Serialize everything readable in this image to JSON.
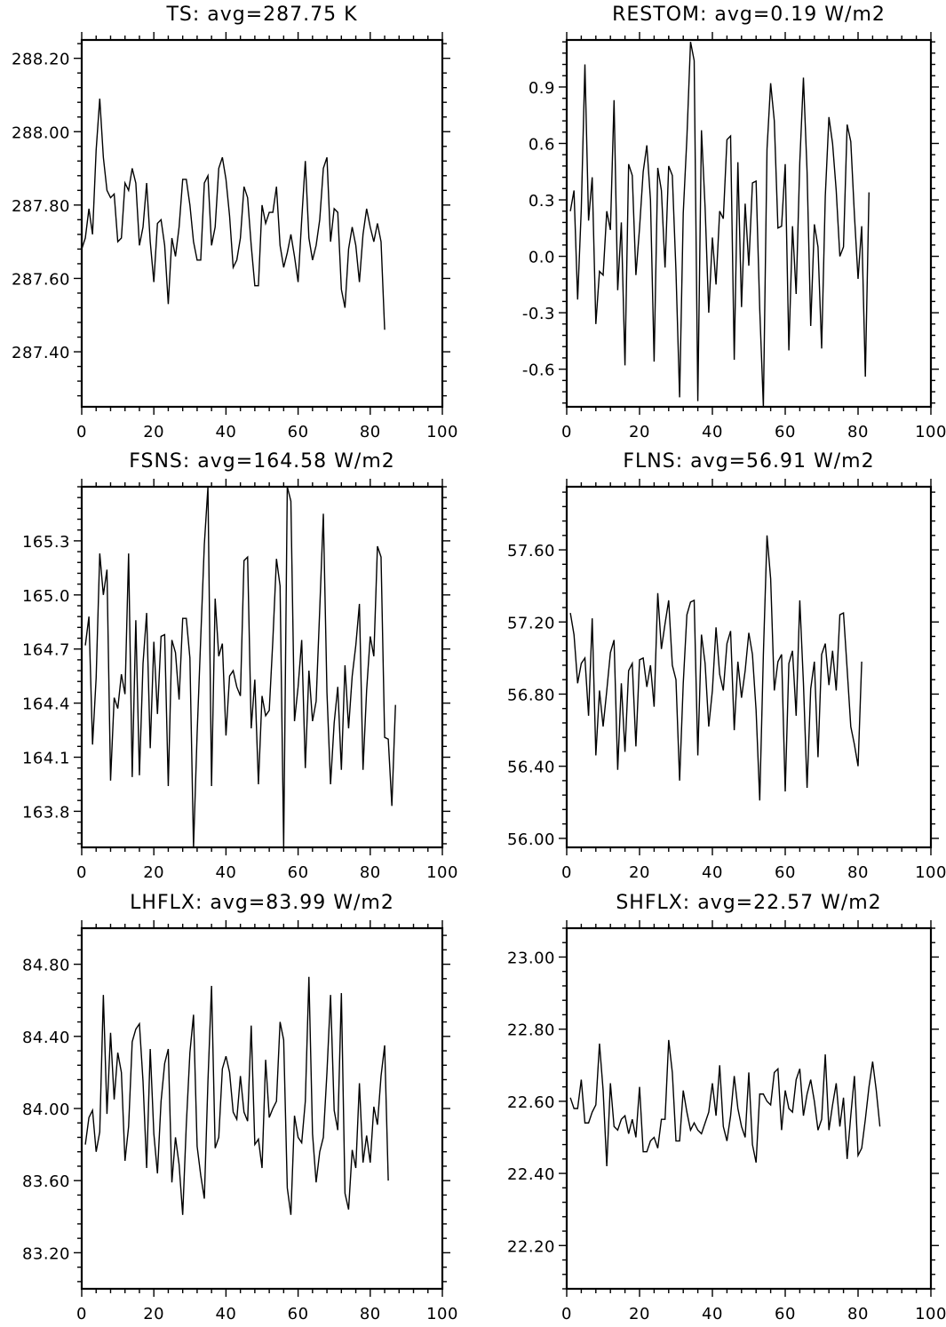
{
  "chart_data": [
    {
      "type": "line",
      "title": "TS: avg=287.75 K",
      "xlim": [
        0,
        100
      ],
      "ylim": [
        287.25,
        288.25
      ],
      "xticks": [
        0,
        20,
        40,
        60,
        80,
        100
      ],
      "xticklabels": [
        "0",
        "20",
        "40",
        "60",
        "80",
        "100"
      ],
      "yticks": [
        287.4,
        287.6,
        287.8,
        288.0,
        288.2
      ],
      "yticklabels": [
        "287.40",
        "287.60",
        "287.80",
        "288.00",
        "288.20"
      ],
      "x_start": 0,
      "values": [
        287.68,
        287.71,
        287.79,
        287.72,
        287.95,
        288.09,
        287.93,
        287.84,
        287.82,
        287.83,
        287.7,
        287.71,
        287.86,
        287.84,
        287.9,
        287.86,
        287.69,
        287.74,
        287.86,
        287.7,
        287.59,
        287.75,
        287.76,
        287.69,
        287.53,
        287.71,
        287.66,
        287.74,
        287.87,
        287.87,
        287.8,
        287.7,
        287.65,
        287.65,
        287.86,
        287.88,
        287.69,
        287.74,
        287.9,
        287.93,
        287.87,
        287.77,
        287.63,
        287.65,
        287.71,
        287.85,
        287.82,
        287.69,
        287.58,
        287.58,
        287.8,
        287.75,
        287.78,
        287.78,
        287.85,
        287.69,
        287.63,
        287.67,
        287.72,
        287.66,
        287.59,
        287.76,
        287.92,
        287.71,
        287.65,
        287.69,
        287.76,
        287.9,
        287.93,
        287.7,
        287.79,
        287.78,
        287.57,
        287.52,
        287.68,
        287.74,
        287.69,
        287.59,
        287.72,
        287.79,
        287.74,
        287.7,
        287.75,
        287.7,
        287.46
      ]
    },
    {
      "type": "line",
      "title": "RESTOM: avg=0.19 W/m2",
      "xlim": [
        0,
        100
      ],
      "ylim": [
        -0.8,
        1.15
      ],
      "xticks": [
        0,
        20,
        40,
        60,
        80,
        100
      ],
      "xticklabels": [
        "0",
        "20",
        "40",
        "60",
        "80",
        "100"
      ],
      "yticks": [
        -0.6,
        -0.3,
        0.0,
        0.3,
        0.6,
        0.9
      ],
      "yticklabels": [
        "-0.6",
        "-0.3",
        "0.0",
        "0.3",
        "0.6",
        "0.9"
      ],
      "x_start": 1,
      "values": [
        0.24,
        0.35,
        -0.23,
        0.25,
        1.02,
        0.19,
        0.42,
        -0.36,
        -0.08,
        -0.1,
        0.24,
        0.14,
        0.83,
        -0.18,
        0.18,
        -0.58,
        0.49,
        0.43,
        -0.1,
        0.15,
        0.45,
        0.59,
        0.3,
        -0.56,
        0.47,
        0.35,
        -0.06,
        0.48,
        0.43,
        -0.08,
        -0.75,
        0.23,
        0.63,
        1.14,
        1.04,
        -0.77,
        0.67,
        0.26,
        -0.3,
        0.1,
        -0.15,
        0.24,
        0.2,
        0.62,
        0.64,
        -0.55,
        0.5,
        -0.27,
        0.28,
        -0.05,
        0.39,
        0.4,
        -0.28,
        -0.8,
        0.57,
        0.92,
        0.72,
        0.15,
        0.16,
        0.49,
        -0.5,
        0.16,
        -0.2,
        0.5,
        0.95,
        0.45,
        -0.37,
        0.17,
        0.05,
        -0.49,
        0.32,
        0.74,
        0.6,
        0.35,
        0.0,
        0.05,
        0.7,
        0.61,
        0.22,
        -0.12,
        0.16,
        -0.64,
        0.34
      ]
    },
    {
      "type": "line",
      "title": "FSNS: avg=164.58 W/m2",
      "xlim": [
        0,
        100
      ],
      "ylim": [
        163.6,
        165.6
      ],
      "xticks": [
        0,
        20,
        40,
        60,
        80,
        100
      ],
      "xticklabels": [
        "0",
        "20",
        "40",
        "60",
        "80",
        "100"
      ],
      "yticks": [
        163.8,
        164.1,
        164.4,
        164.7,
        165.0,
        165.3
      ],
      "yticklabels": [
        "163.8",
        "164.1",
        "164.4",
        "164.7",
        "165.0",
        "165.3"
      ],
      "x_start": 1,
      "values": [
        164.72,
        164.88,
        164.17,
        164.54,
        165.23,
        165.0,
        165.14,
        163.97,
        164.43,
        164.37,
        164.56,
        164.45,
        165.23,
        163.99,
        164.86,
        164.0,
        164.62,
        164.9,
        164.15,
        164.74,
        164.34,
        164.77,
        164.78,
        163.94,
        164.75,
        164.68,
        164.42,
        164.87,
        164.87,
        164.65,
        163.6,
        164.23,
        164.76,
        165.28,
        165.6,
        163.94,
        164.98,
        164.66,
        164.73,
        164.22,
        164.55,
        164.58,
        164.49,
        164.44,
        165.19,
        165.21,
        164.26,
        164.53,
        163.95,
        164.44,
        164.33,
        164.36,
        164.75,
        165.2,
        165.05,
        163.6,
        165.6,
        165.52,
        164.3,
        164.49,
        164.75,
        164.04,
        164.58,
        164.3,
        164.41,
        164.92,
        165.45,
        164.46,
        163.95,
        164.29,
        164.49,
        164.03,
        164.61,
        164.26,
        164.55,
        164.72,
        164.95,
        164.03,
        164.47,
        164.77,
        164.66,
        165.27,
        165.21,
        164.21,
        164.2,
        163.83,
        164.39
      ]
    },
    {
      "type": "line",
      "title": "FLNS: avg=56.91 W/m2",
      "xlim": [
        0,
        100
      ],
      "ylim": [
        55.95,
        57.95
      ],
      "xticks": [
        0,
        20,
        40,
        60,
        80,
        100
      ],
      "xticklabels": [
        "0",
        "20",
        "40",
        "60",
        "80",
        "100"
      ],
      "yticks": [
        56.0,
        56.4,
        56.8,
        57.2,
        57.6
      ],
      "yticklabels": [
        "56.00",
        "56.40",
        "56.80",
        "57.20",
        "57.60"
      ],
      "x_start": 1,
      "values": [
        57.25,
        57.13,
        56.86,
        56.97,
        57.0,
        56.68,
        57.22,
        56.46,
        56.82,
        56.62,
        56.82,
        57.03,
        57.1,
        56.38,
        56.86,
        56.48,
        56.93,
        56.97,
        56.51,
        56.99,
        57.0,
        56.84,
        56.96,
        56.73,
        57.36,
        57.05,
        57.19,
        57.32,
        56.96,
        56.88,
        56.32,
        56.86,
        57.24,
        57.31,
        57.32,
        56.46,
        57.13,
        56.97,
        56.62,
        56.82,
        57.17,
        56.91,
        56.82,
        57.08,
        57.15,
        56.6,
        56.98,
        56.78,
        56.93,
        57.14,
        57.02,
        56.71,
        56.21,
        57.02,
        57.68,
        57.44,
        56.82,
        56.98,
        57.02,
        56.26,
        56.97,
        57.04,
        56.68,
        57.32,
        56.86,
        56.28,
        56.83,
        56.98,
        56.45,
        57.02,
        57.08,
        56.85,
        57.04,
        56.82,
        57.24,
        57.25,
        56.94,
        56.62,
        56.52,
        56.4,
        56.98
      ]
    },
    {
      "type": "line",
      "title": "LHFLX: avg=83.99 W/m2",
      "xlim": [
        0,
        100
      ],
      "ylim": [
        83.0,
        85.0
      ],
      "xticks": [
        0,
        20,
        40,
        60,
        80,
        100
      ],
      "xticklabels": [
        "0",
        "20",
        "40",
        "60",
        "80",
        "100"
      ],
      "yticks": [
        83.2,
        83.6,
        84.0,
        84.4,
        84.8
      ],
      "yticklabels": [
        "83.20",
        "83.60",
        "84.00",
        "84.40",
        "84.80"
      ],
      "x_start": 1,
      "values": [
        83.8,
        83.95,
        83.99,
        83.76,
        83.87,
        84.63,
        83.97,
        84.42,
        84.05,
        84.31,
        84.2,
        83.71,
        83.9,
        84.37,
        84.44,
        84.47,
        84.15,
        83.67,
        84.33,
        83.86,
        83.64,
        84.04,
        84.25,
        84.33,
        83.59,
        83.84,
        83.69,
        83.41,
        83.91,
        84.31,
        84.52,
        83.79,
        83.63,
        83.5,
        84.15,
        84.68,
        83.78,
        83.84,
        84.22,
        84.29,
        84.2,
        83.98,
        83.94,
        84.18,
        83.98,
        83.93,
        84.46,
        83.8,
        83.83,
        83.67,
        84.27,
        83.95,
        84.0,
        84.04,
        84.48,
        84.38,
        83.56,
        83.41,
        83.96,
        83.84,
        83.81,
        84.04,
        84.73,
        83.86,
        83.59,
        83.76,
        83.84,
        84.2,
        84.63,
        83.99,
        83.88,
        84.64,
        83.53,
        83.44,
        83.77,
        83.67,
        84.14,
        83.7,
        83.85,
        83.7,
        84.01,
        83.91,
        84.18,
        84.35,
        83.6
      ]
    },
    {
      "type": "line",
      "title": "SHFLX: avg=22.57 W/m2",
      "xlim": [
        0,
        100
      ],
      "ylim": [
        22.08,
        23.08
      ],
      "xticks": [
        0,
        20,
        40,
        60,
        80,
        100
      ],
      "xticklabels": [
        "0",
        "20",
        "40",
        "60",
        "80",
        "100"
      ],
      "yticks": [
        22.2,
        22.4,
        22.6,
        22.8,
        23.0
      ],
      "yticklabels": [
        "22.20",
        "22.40",
        "22.60",
        "22.80",
        "23.00"
      ],
      "x_start": 1,
      "values": [
        22.61,
        22.58,
        22.58,
        22.66,
        22.54,
        22.54,
        22.57,
        22.59,
        22.76,
        22.63,
        22.42,
        22.65,
        22.53,
        22.52,
        22.55,
        22.56,
        22.51,
        22.55,
        22.5,
        22.64,
        22.46,
        22.46,
        22.49,
        22.5,
        22.47,
        22.55,
        22.55,
        22.77,
        22.68,
        22.49,
        22.49,
        22.63,
        22.57,
        22.52,
        22.54,
        22.52,
        22.51,
        22.54,
        22.57,
        22.65,
        22.56,
        22.7,
        22.53,
        22.49,
        22.56,
        22.67,
        22.58,
        22.53,
        22.5,
        22.68,
        22.48,
        22.43,
        22.62,
        22.62,
        22.6,
        22.59,
        22.68,
        22.69,
        22.52,
        22.63,
        22.58,
        22.57,
        22.66,
        22.69,
        22.56,
        22.62,
        22.66,
        22.6,
        22.52,
        22.55,
        22.73,
        22.52,
        22.59,
        22.65,
        22.53,
        22.61,
        22.44,
        22.56,
        22.67,
        22.45,
        22.47,
        22.55,
        22.64,
        22.71,
        22.63,
        22.53
      ]
    }
  ]
}
